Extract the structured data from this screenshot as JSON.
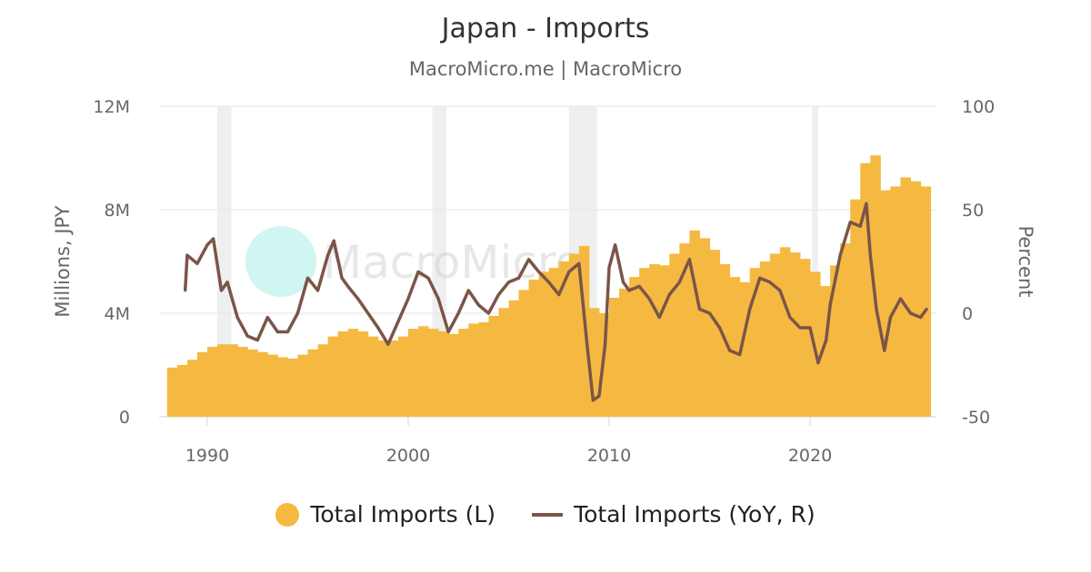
{
  "chart_data": {
    "type": "bar+line",
    "title": "Japan - Imports",
    "subtitle": "MacroMicro.me | MacroMicro",
    "watermark": "MacroMicro",
    "y_left": {
      "label": "Millions, JPY",
      "range": [
        0,
        12000000
      ],
      "ticks": [
        "0",
        "4M",
        "8M",
        "12M"
      ],
      "tick_values": [
        0,
        4000000,
        8000000,
        12000000
      ]
    },
    "y_right": {
      "label": "Percent",
      "range": [
        -50,
        100
      ],
      "ticks": [
        "-50",
        "0",
        "50",
        "100"
      ],
      "tick_values": [
        -50,
        0,
        50,
        100
      ]
    },
    "x_axis": {
      "range": [
        1988,
        2026
      ],
      "ticks": [
        "1990",
        "2000",
        "2010",
        "2020"
      ],
      "tick_values": [
        1990,
        2000,
        2010,
        2020
      ]
    },
    "grid": true,
    "legend_placement": "bottom",
    "recession_shading": [
      [
        1990.5,
        1991.2
      ],
      [
        2001.2,
        2001.9
      ],
      [
        2008.0,
        2009.4
      ],
      [
        2020.1,
        2020.4
      ]
    ],
    "series": [
      {
        "name": "Total Imports (L)",
        "type": "bar",
        "axis": "left",
        "color": "#F5B942",
        "x": [
          1988,
          1988.5,
          1989,
          1989.5,
          1990,
          1990.5,
          1991,
          1991.5,
          1992,
          1992.5,
          1993,
          1993.5,
          1994,
          1994.5,
          1995,
          1995.5,
          1996,
          1996.5,
          1997,
          1997.5,
          1998,
          1998.5,
          1999,
          1999.5,
          2000,
          2000.5,
          2001,
          2001.5,
          2002,
          2002.5,
          2003,
          2003.5,
          2004,
          2004.5,
          2005,
          2005.5,
          2006,
          2006.5,
          2007,
          2007.5,
          2008,
          2008.5,
          2009,
          2009.5,
          2010,
          2010.5,
          2011,
          2011.5,
          2012,
          2012.5,
          2013,
          2013.5,
          2014,
          2014.5,
          2015,
          2015.5,
          2016,
          2016.5,
          2017,
          2017.5,
          2018,
          2018.5,
          2019,
          2019.5,
          2020,
          2020.5,
          2021,
          2021.5,
          2022,
          2022.5,
          2023,
          2023.5,
          2024,
          2024.5,
          2025,
          2025.5
        ],
        "values": [
          1.9,
          2.0,
          2.2,
          2.5,
          2.7,
          2.8,
          2.8,
          2.7,
          2.6,
          2.5,
          2.4,
          2.3,
          2.25,
          2.4,
          2.6,
          2.8,
          3.1,
          3.3,
          3.4,
          3.3,
          3.1,
          2.95,
          2.95,
          3.1,
          3.4,
          3.5,
          3.4,
          3.3,
          3.2,
          3.4,
          3.6,
          3.65,
          3.9,
          4.2,
          4.5,
          4.9,
          5.3,
          5.6,
          5.75,
          6.0,
          6.3,
          6.6,
          4.2,
          4.0,
          4.6,
          4.95,
          5.4,
          5.75,
          5.9,
          5.85,
          6.3,
          6.7,
          7.2,
          6.9,
          6.45,
          5.9,
          5.4,
          5.2,
          5.75,
          6.0,
          6.3,
          6.55,
          6.35,
          6.1,
          5.6,
          5.05,
          5.85,
          6.7,
          8.4,
          9.8,
          10.1,
          8.75,
          8.9,
          9.25,
          9.1,
          8.9
        ],
        "unit": "M JPY"
      },
      {
        "name": "Total Imports (YoY, R)",
        "type": "line",
        "axis": "right",
        "color": "#7B5548",
        "x": [
          1988.9,
          1989,
          1989.5,
          1990,
          1990.3,
          1990.7,
          1991,
          1991.5,
          1992,
          1992.5,
          1993,
          1993.5,
          1994,
          1994.5,
          1995,
          1995.5,
          1996,
          1996.3,
          1996.7,
          1997,
          1997.5,
          1998,
          1998.5,
          1999,
          1999.5,
          2000,
          2000.5,
          2001,
          2001.5,
          2002,
          2002.5,
          2003,
          2003.5,
          2004,
          2004.5,
          2005,
          2005.5,
          2006,
          2006.5,
          2007,
          2007.5,
          2008,
          2008.5,
          2008.9,
          2009.2,
          2009.5,
          2009.8,
          2010,
          2010.3,
          2010.7,
          2011,
          2011.5,
          2012,
          2012.5,
          2013,
          2013.5,
          2014,
          2014.5,
          2015,
          2015.5,
          2016,
          2016.5,
          2017,
          2017.5,
          2018,
          2018.5,
          2019,
          2019.5,
          2020,
          2020.4,
          2020.8,
          2021,
          2021.5,
          2022,
          2022.5,
          2022.8,
          2023,
          2023.3,
          2023.7,
          2024,
          2024.5,
          2025,
          2025.5,
          2025.8
        ],
        "values": [
          11,
          28,
          24,
          33,
          36,
          11,
          15,
          -2,
          -11,
          -13,
          -2,
          -9,
          -9,
          0,
          17,
          11,
          28,
          35,
          17,
          13,
          7,
          0,
          -7,
          -15,
          -4,
          7,
          20,
          17,
          7,
          -9,
          0,
          11,
          4,
          0,
          9,
          15,
          17,
          26,
          20,
          15,
          9,
          20,
          24,
          -15,
          -42,
          -40,
          -15,
          22,
          33,
          15,
          11,
          13,
          7,
          -2,
          9,
          15,
          26,
          2,
          0,
          -7,
          -18,
          -20,
          2,
          17,
          15,
          11,
          -2,
          -7,
          -7,
          -24,
          -13,
          4,
          28,
          44,
          42,
          53,
          28,
          2,
          -18,
          -2,
          7,
          0,
          -2,
          2
        ]
      }
    ]
  }
}
